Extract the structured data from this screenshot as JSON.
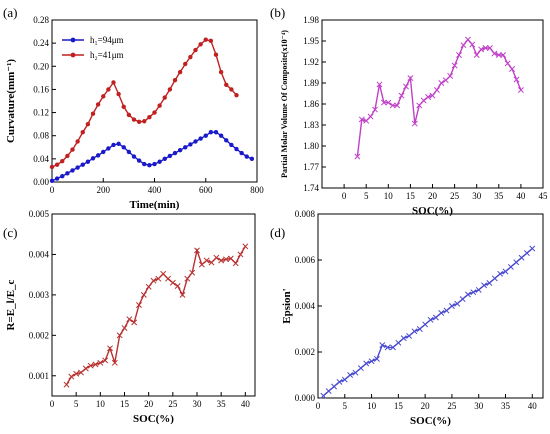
{
  "panel_labels": [
    "(a)",
    "(b)",
    "(c)",
    "(d)"
  ],
  "chart_data": [
    {
      "type": "line",
      "xlabel": "Time(min)",
      "ylabel": "Curvature(mm⁻¹)",
      "xlim": [
        0,
        800
      ],
      "ylim": [
        0,
        0.28
      ],
      "xticks": [
        0,
        200,
        400,
        600,
        800
      ],
      "yticks": [
        0.0,
        0.04,
        0.08,
        0.12,
        0.16,
        0.2,
        0.24,
        0.28
      ],
      "ytick_decimals": 2,
      "legend": "top-left",
      "series": [
        {
          "name": "h₁=94μm",
          "color": "#1a1acc",
          "marker": "circle",
          "x": [
            0,
            20,
            40,
            60,
            80,
            100,
            120,
            140,
            160,
            180,
            200,
            220,
            240,
            260,
            280,
            300,
            320,
            340,
            360,
            380,
            400,
            420,
            440,
            460,
            480,
            500,
            520,
            540,
            560,
            580,
            600,
            620,
            640,
            660,
            680,
            700,
            720,
            740,
            760,
            780
          ],
          "y": [
            0.002,
            0.006,
            0.01,
            0.015,
            0.02,
            0.025,
            0.03,
            0.035,
            0.041,
            0.046,
            0.052,
            0.058,
            0.064,
            0.066,
            0.06,
            0.052,
            0.044,
            0.037,
            0.031,
            0.029,
            0.031,
            0.035,
            0.04,
            0.045,
            0.05,
            0.055,
            0.06,
            0.065,
            0.07,
            0.075,
            0.08,
            0.086,
            0.086,
            0.08,
            0.072,
            0.064,
            0.057,
            0.05,
            0.044,
            0.04
          ]
        },
        {
          "name": "h₂=41μm",
          "color": "#c02020",
          "marker": "circle",
          "x": [
            0,
            20,
            40,
            60,
            80,
            100,
            120,
            140,
            160,
            180,
            200,
            220,
            240,
            260,
            280,
            300,
            320,
            340,
            360,
            380,
            400,
            420,
            440,
            460,
            480,
            500,
            520,
            540,
            560,
            580,
            600,
            620,
            640,
            660,
            680,
            700,
            720
          ],
          "y": [
            0.026,
            0.03,
            0.036,
            0.045,
            0.056,
            0.07,
            0.086,
            0.1,
            0.118,
            0.134,
            0.148,
            0.16,
            0.172,
            0.152,
            0.13,
            0.116,
            0.108,
            0.104,
            0.105,
            0.112,
            0.12,
            0.132,
            0.146,
            0.16,
            0.176,
            0.19,
            0.204,
            0.216,
            0.228,
            0.238,
            0.246,
            0.244,
            0.22,
            0.19,
            0.168,
            0.16,
            0.15
          ]
        }
      ]
    },
    {
      "type": "line",
      "xlabel": "SOC(%)",
      "ylabel": "Partial Molar Volume Of Composite(x10⁻⁴)",
      "xlim": [
        -5,
        45
      ],
      "ylim": [
        1.74,
        1.98
      ],
      "xticks": [
        0,
        5,
        10,
        15,
        20,
        25,
        30,
        35,
        40,
        45
      ],
      "yticks": [
        1.74,
        1.77,
        1.8,
        1.83,
        1.86,
        1.89,
        1.92,
        1.95,
        1.98
      ],
      "ytick_decimals": 2,
      "series": [
        {
          "color": "#c040c8",
          "marker": "cross",
          "x": [
            3,
            4,
            5,
            6,
            7,
            8,
            9,
            10,
            11,
            12,
            13,
            14,
            15,
            16,
            17,
            18,
            19,
            20,
            21,
            22,
            23,
            24,
            25,
            26,
            27,
            28,
            29,
            30,
            31,
            32,
            33,
            34,
            35,
            36,
            37,
            38,
            39,
            40
          ],
          "y": [
            1.785,
            1.838,
            1.836,
            1.842,
            1.852,
            1.888,
            1.862,
            1.862,
            1.858,
            1.858,
            1.872,
            1.885,
            1.897,
            1.832,
            1.858,
            1.865,
            1.87,
            1.872,
            1.88,
            1.89,
            1.894,
            1.9,
            1.915,
            1.93,
            1.944,
            1.952,
            1.945,
            1.93,
            1.938,
            1.94,
            1.94,
            1.932,
            1.93,
            1.93,
            1.918,
            1.91,
            1.895,
            1.88
          ]
        }
      ]
    },
    {
      "type": "line",
      "xlabel": "SOC(%)",
      "ylabel": "R=E_l/E_c",
      "xlim": [
        0,
        42
      ],
      "ylim": [
        0.0005,
        0.005
      ],
      "xticks": [
        0,
        5,
        10,
        15,
        20,
        25,
        30,
        35,
        40
      ],
      "yticks": [
        0.001,
        0.002,
        0.003,
        0.004,
        0.005
      ],
      "ytick_decimals": 3,
      "series": [
        {
          "color": "#b83030",
          "marker": "cross",
          "x": [
            3,
            4,
            5,
            6,
            7,
            8,
            9,
            10,
            11,
            12,
            13,
            14,
            15,
            16,
            17,
            18,
            19,
            20,
            21,
            22,
            23,
            24,
            25,
            26,
            27,
            28,
            29,
            30,
            31,
            32,
            33,
            34,
            35,
            36,
            37,
            38,
            39,
            40
          ],
          "y": [
            0.00078,
            0.00098,
            0.00105,
            0.00108,
            0.00118,
            0.00125,
            0.00128,
            0.00132,
            0.00138,
            0.00168,
            0.00132,
            0.002,
            0.00218,
            0.0024,
            0.00232,
            0.00275,
            0.003,
            0.0032,
            0.00335,
            0.0034,
            0.00352,
            0.0034,
            0.0033,
            0.00322,
            0.003,
            0.0034,
            0.00355,
            0.0041,
            0.00375,
            0.00385,
            0.0038,
            0.00392,
            0.00385,
            0.00388,
            0.0039,
            0.00378,
            0.004,
            0.0042
          ]
        }
      ]
    },
    {
      "type": "line",
      "xlabel": "SOC(%)",
      "ylabel": "Epsion'",
      "xlim": [
        0,
        42
      ],
      "ylim": [
        0,
        0.008
      ],
      "xticks": [
        0,
        5,
        10,
        15,
        20,
        25,
        30,
        35,
        40
      ],
      "yticks": [
        0.0,
        0.002,
        0.004,
        0.006,
        0.008
      ],
      "ytick_decimals": 3,
      "series": [
        {
          "color": "#4a4ad0",
          "marker": "cross",
          "x": [
            1,
            2,
            3,
            4,
            5,
            6,
            7,
            8,
            9,
            10,
            11,
            12,
            13,
            14,
            15,
            16,
            17,
            18,
            19,
            20,
            21,
            22,
            23,
            24,
            25,
            26,
            27,
            28,
            29,
            30,
            31,
            32,
            33,
            34,
            35,
            36,
            37,
            38,
            39,
            40
          ],
          "y": [
            0.0001,
            0.0003,
            0.0005,
            0.0007,
            0.0008,
            0.001,
            0.0011,
            0.0013,
            0.0015,
            0.0016,
            0.0017,
            0.0023,
            0.0022,
            0.0022,
            0.0024,
            0.0026,
            0.0027,
            0.0029,
            0.003,
            0.0032,
            0.0034,
            0.0035,
            0.0037,
            0.0038,
            0.004,
            0.0041,
            0.0043,
            0.0045,
            0.0046,
            0.0047,
            0.0049,
            0.005,
            0.0052,
            0.0054,
            0.0055,
            0.0057,
            0.0059,
            0.0061,
            0.0063,
            0.0065
          ]
        }
      ]
    }
  ]
}
